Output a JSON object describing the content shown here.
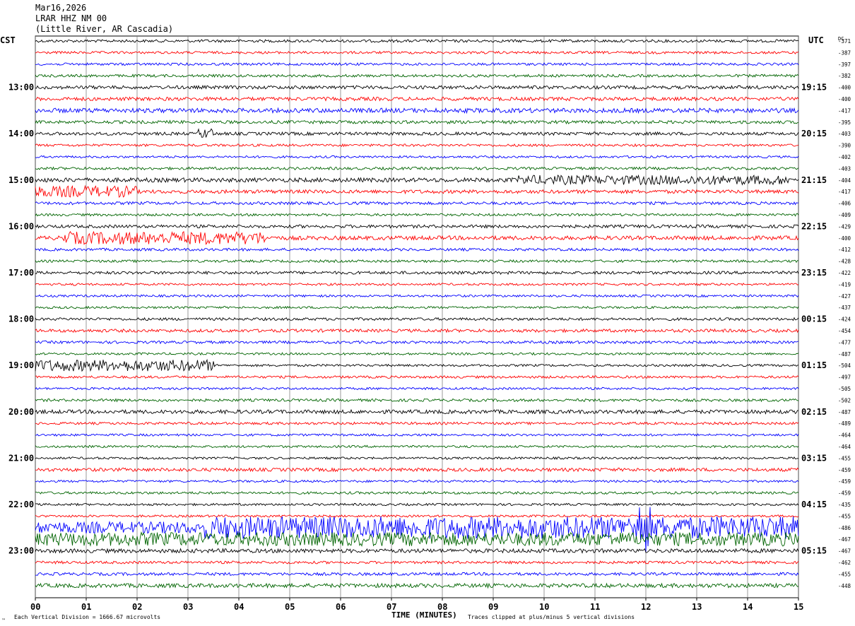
{
  "header": {
    "date": "Mar16,2026",
    "station": "LRAR HHZ NM 00",
    "location": "(Little River, AR Cascadia)"
  },
  "labels": {
    "left_tz": "CST",
    "right_tz": "UTC",
    "dc_header": "DC",
    "x_axis_title": "TIME (MINUTES)",
    "scale_note": "Each Vertical Division = 1666.67 microvolts",
    "clip_note": "Traces clipped at plus/minus 5 vertical divisions",
    "corner_mark": "™"
  },
  "chart_data": {
    "type": "helicorder",
    "xlabel": "TIME (MINUTES)",
    "xlim": [
      0,
      15
    ],
    "x_ticks": [
      "00",
      "01",
      "02",
      "03",
      "04",
      "05",
      "06",
      "07",
      "08",
      "09",
      "10",
      "11",
      "12",
      "13",
      "14",
      "15"
    ],
    "grid": "vertical lines at each minute",
    "trace_colors": [
      "#000000",
      "#ff0000",
      "#0000ff",
      "#006400"
    ],
    "hour_labels_left": [
      "13:00",
      "14:00",
      "15:00",
      "16:00",
      "17:00",
      "18:00",
      "19:00",
      "20:00",
      "21:00",
      "22:00",
      "23:00"
    ],
    "hour_labels_right": [
      "19:15",
      "20:15",
      "21:15",
      "22:15",
      "23:15",
      "00:15",
      "01:15",
      "02:15",
      "03:15",
      "04:15",
      "05:15"
    ],
    "dc_offsets": [
      "-371",
      "-387",
      "-397",
      "-382",
      "-400",
      "-400",
      "-417",
      "-395",
      "-403",
      "-390",
      "-402",
      "-403",
      "-404",
      "-417",
      "-406",
      "-409",
      "-429",
      "-400",
      "-412",
      "-428",
      "-422",
      "-419",
      "-427",
      "-437",
      "-424",
      "-454",
      "-477",
      "-487",
      "-504",
      "-497",
      "-505",
      "-502",
      "-487",
      "-489",
      "-464",
      "-464",
      "-455",
      "-459",
      "-459",
      "-459",
      "-435",
      "-455",
      "-486",
      "-467",
      "-467",
      "-462",
      "-455",
      "-448"
    ],
    "amplitudes": [
      0.6,
      0.55,
      0.55,
      0.6,
      0.75,
      0.8,
      1.0,
      0.7,
      0.7,
      0.55,
      0.5,
      0.6,
      0.95,
      0.8,
      0.65,
      0.55,
      0.7,
      0.9,
      0.6,
      0.55,
      0.65,
      0.5,
      0.5,
      0.5,
      0.6,
      0.7,
      0.6,
      0.5,
      0.5,
      0.55,
      0.5,
      0.6,
      0.85,
      0.55,
      0.5,
      0.5,
      0.5,
      0.75,
      0.5,
      0.55,
      0.5,
      0.5,
      2.6,
      3.0,
      0.9,
      0.6,
      0.65,
      0.9
    ],
    "events": [
      {
        "trace": 13,
        "minute_start": 0.0,
        "minute_end": 2.0,
        "amplitude": 1.8
      },
      {
        "trace": 17,
        "minute_start": 0.5,
        "minute_end": 4.5,
        "amplitude": 2.0
      },
      {
        "trace": 28,
        "minute_start": 0.0,
        "minute_end": 3.5,
        "amplitude": 1.8
      },
      {
        "trace": 8,
        "minute_start": 3.2,
        "minute_end": 3.5,
        "amplitude": 1.6
      },
      {
        "trace": 12,
        "minute_start": 9.5,
        "minute_end": 14.8,
        "amplitude": 1.5
      },
      {
        "trace": 42,
        "minute_start": 3.3,
        "minute_end": 15.0,
        "amplitude": 3.5
      },
      {
        "trace": 42,
        "minute_start": 11.8,
        "minute_end": 12.1,
        "amplitude": 8.0
      }
    ]
  }
}
